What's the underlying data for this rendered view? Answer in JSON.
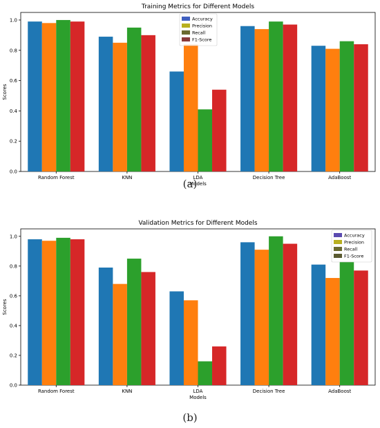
{
  "captions": [
    "(a)",
    "(b)"
  ],
  "chart_data": [
    {
      "type": "bar",
      "title": "Training Metrics for Different Models",
      "xlabel": "Models",
      "ylabel": "Scores",
      "ylim": [
        0,
        1.0
      ],
      "yticks": [
        "0.0",
        "0.2",
        "0.4",
        "0.6",
        "0.8",
        "1.0"
      ],
      "grid": false,
      "legend_position": "top-center",
      "categories": [
        "Random Forest",
        "KNN",
        "LDA",
        "Decision Tree",
        "AdaBoost"
      ],
      "series": [
        {
          "name": "Accuracy",
          "color": "#1f77b4",
          "values": [
            0.99,
            0.89,
            0.66,
            0.96,
            0.83
          ]
        },
        {
          "name": "Precision",
          "color": "#ff7f0e",
          "values": [
            0.98,
            0.85,
            0.84,
            0.94,
            0.81
          ]
        },
        {
          "name": "Recall",
          "color": "#2ca02c",
          "values": [
            1.0,
            0.95,
            0.41,
            0.99,
            0.86
          ]
        },
        {
          "name": "F1-Score",
          "color": "#d62728",
          "values": [
            0.99,
            0.9,
            0.54,
            0.97,
            0.84
          ]
        }
      ],
      "legend_colors": [
        "#4060c0",
        "#b8b020",
        "#6a6a30",
        "#8a3a3a"
      ]
    },
    {
      "type": "bar",
      "title": "Validation Metrics for Different Models",
      "xlabel": "Models",
      "ylabel": "Scores",
      "ylim": [
        0,
        1.0
      ],
      "yticks": [
        "0.0",
        "0.2",
        "0.4",
        "0.6",
        "0.8",
        "1.0"
      ],
      "grid": false,
      "legend_position": "top-right",
      "categories": [
        "Random Forest",
        "KNN",
        "LDA",
        "Decision Tree",
        "AdaBoost"
      ],
      "series": [
        {
          "name": "Accuracy",
          "color": "#1f77b4",
          "values": [
            0.98,
            0.79,
            0.63,
            0.96,
            0.81
          ]
        },
        {
          "name": "Precision",
          "color": "#ff7f0e",
          "values": [
            0.97,
            0.68,
            0.57,
            0.91,
            0.72
          ]
        },
        {
          "name": "Recall",
          "color": "#2ca02c",
          "values": [
            0.99,
            0.85,
            0.16,
            1.0,
            0.83
          ]
        },
        {
          "name": "F1-Score",
          "color": "#d62728",
          "values": [
            0.98,
            0.76,
            0.26,
            0.95,
            0.77
          ]
        }
      ],
      "legend_colors": [
        "#5a4ab0",
        "#b8b020",
        "#6a6a30",
        "#5a5a30"
      ]
    }
  ]
}
